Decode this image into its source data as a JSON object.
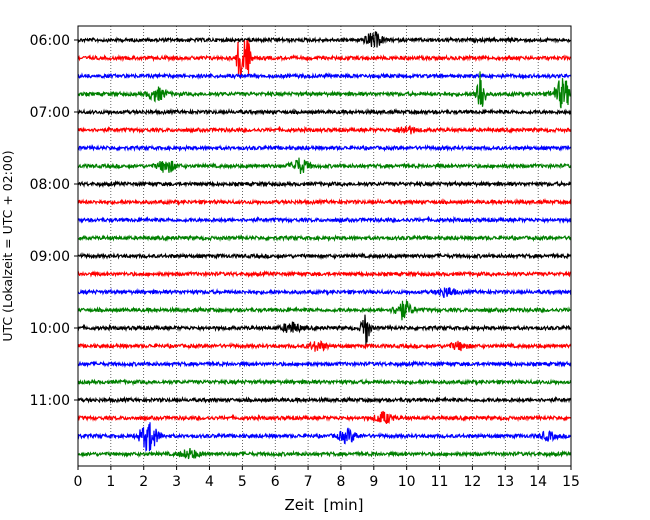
{
  "chart_data": {
    "type": "line",
    "title": "",
    "xlabel": "Zeit  [min]",
    "ylabel": "UTC (Lokalzeit = UTC + 02:00)",
    "xlim": [
      0,
      15
    ],
    "x_ticks": [
      "0",
      "1",
      "2",
      "3",
      "4",
      "5",
      "6",
      "7",
      "8",
      "9",
      "10",
      "11",
      "12",
      "13",
      "14",
      "15"
    ],
    "y_ticks": [
      "06:00",
      "07:00",
      "08:00",
      "09:00",
      "10:00",
      "11:00"
    ],
    "grid": "vertical dotted lines at each minute",
    "trace_colors": [
      "#000000",
      "#ff0000",
      "#0000ff",
      "#008000"
    ],
    "trace_interval_minutes": 15,
    "series": [
      {
        "start": "06:00",
        "events": [
          {
            "t": 9.0,
            "amp": 0.4
          }
        ]
      },
      {
        "start": "06:15",
        "events": [
          {
            "t": 4.95,
            "amp": 1.4
          },
          {
            "t": 5.15,
            "amp": 1.0
          }
        ]
      },
      {
        "start": "06:30",
        "events": []
      },
      {
        "start": "06:45",
        "events": [
          {
            "t": 2.4,
            "amp": 0.35
          },
          {
            "t": 12.25,
            "amp": 1.5
          },
          {
            "t": 14.75,
            "amp": 0.8
          }
        ]
      },
      {
        "start": "07:00",
        "events": []
      },
      {
        "start": "07:15",
        "events": [
          {
            "t": 10.0,
            "amp": 0.2
          }
        ]
      },
      {
        "start": "07:30",
        "events": []
      },
      {
        "start": "07:45",
        "events": [
          {
            "t": 2.7,
            "amp": 0.35
          },
          {
            "t": 6.75,
            "amp": 0.4
          }
        ]
      },
      {
        "start": "08:00",
        "events": []
      },
      {
        "start": "08:15",
        "events": []
      },
      {
        "start": "08:30",
        "events": []
      },
      {
        "start": "08:45",
        "events": []
      },
      {
        "start": "09:00",
        "events": []
      },
      {
        "start": "09:15",
        "events": []
      },
      {
        "start": "09:30",
        "events": [
          {
            "t": 11.2,
            "amp": 0.25
          }
        ]
      },
      {
        "start": "09:45",
        "events": [
          {
            "t": 9.9,
            "amp": 0.5
          }
        ]
      },
      {
        "start": "10:00",
        "events": [
          {
            "t": 8.75,
            "amp": 1.0
          },
          {
            "t": 6.5,
            "amp": 0.3
          }
        ]
      },
      {
        "start": "10:15",
        "events": [
          {
            "t": 7.3,
            "amp": 0.25
          },
          {
            "t": 11.6,
            "amp": 0.2
          }
        ]
      },
      {
        "start": "10:30",
        "events": []
      },
      {
        "start": "10:45",
        "events": []
      },
      {
        "start": "11:00",
        "events": []
      },
      {
        "start": "11:15",
        "events": [
          {
            "t": 9.3,
            "amp": 0.3
          }
        ]
      },
      {
        "start": "11:30",
        "events": [
          {
            "t": 2.15,
            "amp": 0.8
          },
          {
            "t": 8.2,
            "amp": 0.35
          },
          {
            "t": 14.3,
            "amp": 0.2
          }
        ]
      },
      {
        "start": "11:45",
        "events": [
          {
            "t": 3.4,
            "amp": 0.25
          }
        ]
      }
    ]
  }
}
